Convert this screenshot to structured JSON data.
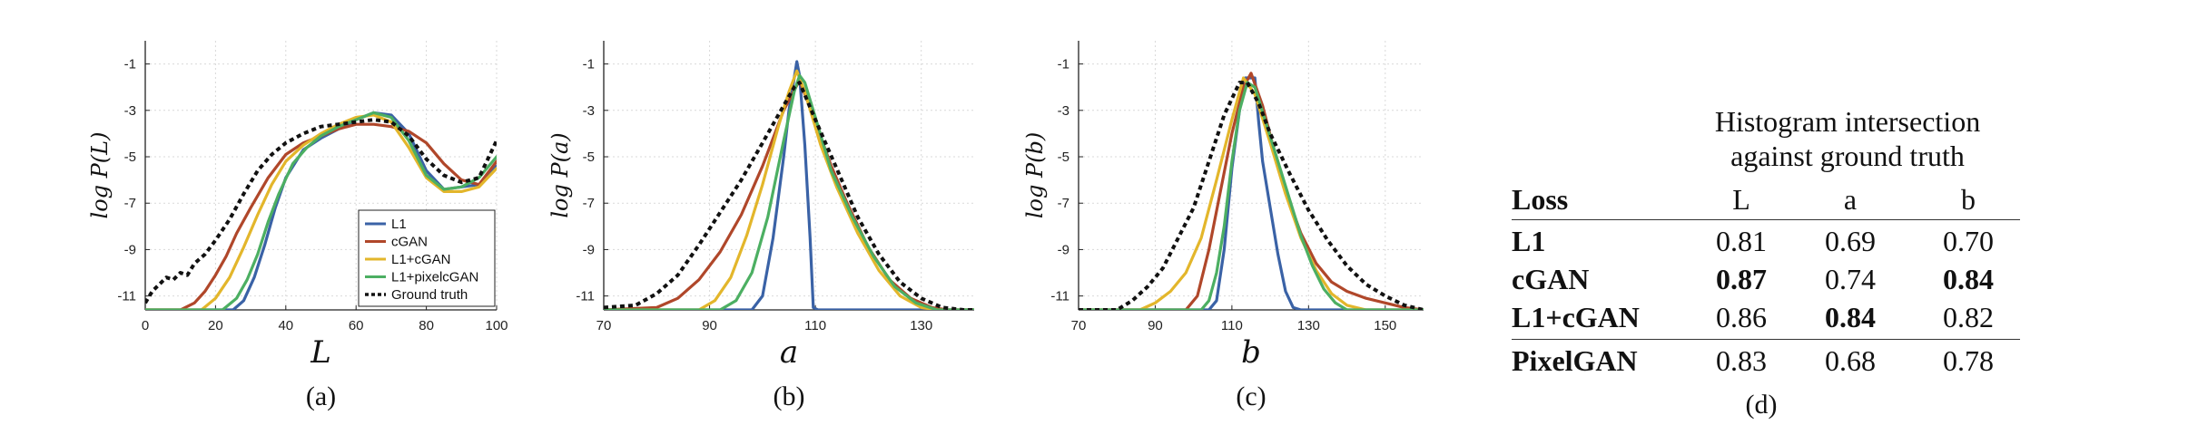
{
  "colors": {
    "L1": "#3a62a6",
    "cGAN": "#b0472a",
    "L1+cGAN": "#e3b62b",
    "L1+pixelcGAN": "#4caf62",
    "Ground truth": "#111111",
    "grid": "#d9d9d9"
  },
  "chart_data": [
    {
      "type": "line",
      "ylabel": "log P(L)",
      "xlabel": "L",
      "caption": "(a)",
      "xlim": [
        0,
        100
      ],
      "ylim": [
        -11.6,
        0
      ],
      "xticks": [
        0,
        20,
        40,
        60,
        80,
        100
      ],
      "yticks": [
        -1,
        -3,
        -5,
        -7,
        -9,
        -11
      ],
      "grid": true,
      "legend": {
        "placement": "bottom-right",
        "entries": [
          "L1",
          "cGAN",
          "L1+cGAN",
          "L1+pixelcGAN",
          "Ground truth"
        ]
      },
      "series": [
        {
          "name": "L1",
          "style": "solid",
          "x": [
            0,
            25,
            28,
            31,
            34,
            37,
            40,
            45,
            50,
            55,
            60,
            65,
            70,
            75,
            80,
            85,
            90,
            95,
            100
          ],
          "y": [
            -11.6,
            -11.6,
            -11.2,
            -10.2,
            -8.8,
            -7.2,
            -5.9,
            -4.7,
            -4.2,
            -3.8,
            -3.4,
            -3.1,
            -3.2,
            -4.0,
            -5.6,
            -6.4,
            -6.3,
            -6.2,
            -5.4
          ]
        },
        {
          "name": "cGAN",
          "style": "solid",
          "x": [
            0,
            10,
            14,
            17,
            20,
            23,
            26,
            30,
            35,
            40,
            45,
            50,
            55,
            60,
            65,
            70,
            75,
            80,
            85,
            90,
            95,
            100
          ],
          "y": [
            -11.6,
            -11.6,
            -11.3,
            -10.8,
            -10.1,
            -9.3,
            -8.3,
            -7.2,
            -5.9,
            -4.9,
            -4.4,
            -4.1,
            -3.8,
            -3.6,
            -3.6,
            -3.7,
            -3.9,
            -4.4,
            -5.3,
            -6.0,
            -6.2,
            -5.2
          ]
        },
        {
          "name": "L1+cGAN",
          "style": "solid",
          "x": [
            0,
            16,
            20,
            24,
            28,
            32,
            36,
            40,
            45,
            50,
            55,
            60,
            65,
            70,
            75,
            80,
            85,
            90,
            95,
            100
          ],
          "y": [
            -11.6,
            -11.6,
            -11.1,
            -10.2,
            -8.9,
            -7.5,
            -6.2,
            -5.2,
            -4.5,
            -4.0,
            -3.6,
            -3.3,
            -3.2,
            -3.5,
            -4.6,
            -5.9,
            -6.5,
            -6.5,
            -6.3,
            -5.5
          ]
        },
        {
          "name": "L1+pixelcGAN",
          "style": "solid",
          "x": [
            0,
            22,
            26,
            29,
            32,
            35,
            38,
            42,
            46,
            50,
            55,
            60,
            65,
            70,
            75,
            80,
            85,
            90,
            95,
            100
          ],
          "y": [
            -11.6,
            -11.6,
            -11.1,
            -10.3,
            -9.2,
            -7.8,
            -6.6,
            -5.3,
            -4.6,
            -4.1,
            -3.7,
            -3.4,
            -3.1,
            -3.3,
            -4.3,
            -5.8,
            -6.4,
            -6.3,
            -5.9,
            -5.0
          ]
        },
        {
          "name": "Ground truth",
          "style": "dashed",
          "x": [
            0,
            2,
            4,
            6,
            8,
            10,
            12,
            14,
            17,
            20,
            24,
            28,
            32,
            36,
            40,
            45,
            50,
            55,
            60,
            65,
            70,
            75,
            80,
            85,
            90,
            95,
            100
          ],
          "y": [
            -11.3,
            -10.8,
            -10.5,
            -10.2,
            -10.3,
            -10.0,
            -10.1,
            -9.6,
            -9.2,
            -8.6,
            -7.7,
            -6.6,
            -5.6,
            -4.9,
            -4.4,
            -4.0,
            -3.7,
            -3.6,
            -3.5,
            -3.4,
            -3.5,
            -4.1,
            -5.1,
            -5.8,
            -6.1,
            -5.9,
            -4.3
          ]
        }
      ]
    },
    {
      "type": "line",
      "ylabel": "log P(a)",
      "xlabel": "a",
      "caption": "(b)",
      "xlim": [
        70,
        140
      ],
      "ylim": [
        -11.6,
        0
      ],
      "xticks": [
        70,
        90,
        110,
        130
      ],
      "yticks": [
        -1,
        -3,
        -5,
        -7,
        -9,
        -11
      ],
      "grid": true,
      "series": [
        {
          "name": "L1",
          "style": "solid",
          "x": [
            70,
            98,
            100,
            102,
            104,
            105,
            106,
            106.5,
            107,
            108,
            109,
            109.6,
            110.5,
            112,
            140
          ],
          "y": [
            -11.6,
            -11.6,
            -11.0,
            -8.5,
            -5.0,
            -3.0,
            -1.6,
            -0.9,
            -1.5,
            -4.5,
            -8.5,
            -11.5,
            -11.6,
            -11.6,
            -11.6
          ]
        },
        {
          "name": "cGAN",
          "style": "solid",
          "x": [
            70,
            80,
            84,
            88,
            92,
            96,
            100,
            104,
            107,
            110,
            113,
            116,
            120,
            124,
            128,
            132,
            135,
            140
          ],
          "y": [
            -11.6,
            -11.5,
            -11.1,
            -10.3,
            -9.1,
            -7.5,
            -5.4,
            -3.0,
            -1.7,
            -3.5,
            -5.4,
            -7.0,
            -8.9,
            -10.3,
            -11.1,
            -11.5,
            -11.6,
            -11.6
          ]
        },
        {
          "name": "L1+cGAN",
          "style": "solid",
          "x": [
            70,
            88,
            91,
            94,
            97,
            100,
            103,
            105,
            106.5,
            108,
            111,
            114,
            118,
            122,
            126,
            130,
            133,
            140
          ],
          "y": [
            -11.6,
            -11.6,
            -11.2,
            -10.2,
            -8.4,
            -6.2,
            -3.7,
            -2.2,
            -1.3,
            -2.2,
            -4.5,
            -6.3,
            -8.3,
            -9.9,
            -11.0,
            -11.5,
            -11.6,
            -11.6
          ]
        },
        {
          "name": "L1+pixelcGAN",
          "style": "solid",
          "x": [
            70,
            92,
            95,
            98,
            101,
            104,
            106,
            107,
            108,
            110,
            113,
            117,
            121,
            125,
            129,
            133,
            136,
            140
          ],
          "y": [
            -11.6,
            -11.6,
            -11.2,
            -10.0,
            -7.6,
            -4.3,
            -2.2,
            -1.5,
            -1.8,
            -3.3,
            -5.6,
            -7.6,
            -9.3,
            -10.6,
            -11.3,
            -11.6,
            -11.6,
            -11.6
          ]
        },
        {
          "name": "Ground truth",
          "style": "dashed",
          "x": [
            70,
            76,
            80,
            84,
            88,
            92,
            96,
            100,
            103,
            106,
            107,
            110,
            114,
            118,
            122,
            126,
            130,
            134,
            138,
            140
          ],
          "y": [
            -11.5,
            -11.4,
            -10.9,
            -10.1,
            -8.8,
            -7.4,
            -6.0,
            -4.4,
            -3.2,
            -2.0,
            -1.8,
            -3.4,
            -5.5,
            -7.6,
            -9.2,
            -10.4,
            -11.1,
            -11.5,
            -11.6,
            -11.6
          ]
        }
      ]
    },
    {
      "type": "line",
      "ylabel": "log P(b)",
      "xlabel": "b",
      "caption": "(c)",
      "xlim": [
        70,
        160
      ],
      "ylim": [
        -11.6,
        0
      ],
      "xticks": [
        70,
        90,
        110,
        130,
        150
      ],
      "yticks": [
        -1,
        -3,
        -5,
        -7,
        -9,
        -11
      ],
      "grid": true,
      "series": [
        {
          "name": "L1",
          "style": "solid",
          "x": [
            70,
            104,
            106,
            108,
            110,
            112,
            113.5,
            116,
            117,
            118,
            120,
            122,
            124,
            126,
            128,
            160
          ],
          "y": [
            -11.6,
            -11.6,
            -11.2,
            -9.0,
            -5.5,
            -3.0,
            -1.6,
            -1.6,
            -3.5,
            -5.2,
            -7.2,
            -9.2,
            -10.8,
            -11.5,
            -11.6,
            -11.6
          ]
        },
        {
          "name": "cGAN",
          "style": "solid",
          "x": [
            70,
            98,
            101,
            104,
            107,
            110,
            113,
            115,
            118,
            121,
            124,
            128,
            132,
            136,
            140,
            145,
            150,
            155,
            160
          ],
          "y": [
            -11.6,
            -11.6,
            -11.0,
            -9.0,
            -6.5,
            -4.0,
            -2.0,
            -1.4,
            -2.8,
            -4.7,
            -6.5,
            -8.3,
            -9.6,
            -10.4,
            -10.8,
            -11.1,
            -11.3,
            -11.5,
            -11.6
          ]
        },
        {
          "name": "L1+cGAN",
          "style": "solid",
          "x": [
            70,
            86,
            90,
            94,
            98,
            102,
            106,
            110,
            113,
            116,
            120,
            124,
            128,
            132,
            136,
            140,
            145,
            160
          ],
          "y": [
            -11.6,
            -11.6,
            -11.3,
            -10.8,
            -10.0,
            -8.5,
            -6.0,
            -3.4,
            -1.6,
            -2.3,
            -4.4,
            -6.6,
            -8.5,
            -9.9,
            -10.9,
            -11.4,
            -11.6,
            -11.6
          ]
        },
        {
          "name": "L1+pixelcGAN",
          "style": "solid",
          "x": [
            70,
            102,
            104,
            106,
            108,
            110,
            112,
            114,
            116,
            119,
            122,
            125,
            128,
            131,
            134,
            137,
            140,
            160
          ],
          "y": [
            -11.6,
            -11.6,
            -11.2,
            -10.0,
            -8.0,
            -5.2,
            -3.0,
            -1.8,
            -2.0,
            -3.6,
            -5.2,
            -6.8,
            -8.4,
            -9.7,
            -10.7,
            -11.3,
            -11.6,
            -11.6
          ]
        },
        {
          "name": "Ground truth",
          "style": "dashed",
          "x": [
            70,
            80,
            84,
            88,
            92,
            96,
            100,
            104,
            108,
            112,
            114,
            117,
            120,
            125,
            130,
            135,
            140,
            145,
            150,
            155,
            160
          ],
          "y": [
            -11.6,
            -11.6,
            -11.2,
            -10.6,
            -9.8,
            -8.5,
            -7.2,
            -5.2,
            -3.2,
            -1.8,
            -1.8,
            -2.7,
            -4.0,
            -5.7,
            -7.3,
            -8.6,
            -9.7,
            -10.5,
            -11.0,
            -11.4,
            -11.6
          ]
        }
      ]
    }
  ],
  "table": {
    "title_line1": "Histogram intersection",
    "title_line2": "against ground truth",
    "header": [
      "Loss",
      "L",
      "a",
      "b"
    ],
    "rows": [
      {
        "name": "L1",
        "L": "0.81",
        "a": "0.69",
        "b": "0.70"
      },
      {
        "name": "cGAN",
        "L": "0.87",
        "a": "0.74",
        "b": "0.84"
      },
      {
        "name": "L1+cGAN",
        "L": "0.86",
        "a": "0.84",
        "b": "0.82"
      },
      {
        "name": "PixelGAN",
        "L": "0.83",
        "a": "0.68",
        "b": "0.78"
      }
    ],
    "bold_cells": [
      "1.L",
      "1.b",
      "2.a"
    ],
    "caption": "(d)"
  }
}
